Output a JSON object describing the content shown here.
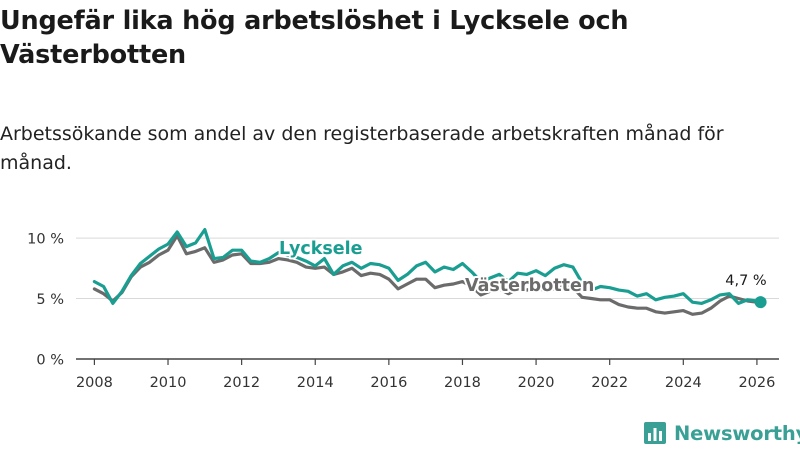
{
  "title": "Ungefär lika hög arbetslöshet i Lycksele och Västerbotten",
  "subtitle": "Arbetssökande som andel av den registerbaserade arbetskraften månad för månad.",
  "brand": {
    "name": "Newsworthy",
    "icon": "newsworthy-logo-icon",
    "color": "#3aa095"
  },
  "chart_data": {
    "type": "line",
    "title": "Ungefär lika hög arbetslöshet i Lycksele och Västerbotten",
    "xlabel": "",
    "ylabel": "",
    "xlim": [
      2007.5,
      2026.6
    ],
    "ylim": [
      0,
      11
    ],
    "grid": true,
    "y_ticks": [
      0,
      5,
      10
    ],
    "y_tick_labels": [
      "0 %",
      "5 %",
      "10 %"
    ],
    "x_ticks": [
      2008,
      2010,
      2012,
      2014,
      2016,
      2018,
      2020,
      2022,
      2024,
      2026
    ],
    "x_tick_labels": [
      "2008",
      "2010",
      "2012",
      "2014",
      "2016",
      "2018",
      "2020",
      "2022",
      "2024",
      "2026"
    ],
    "end_label": "4,7 %",
    "series": [
      {
        "name": "Lycksele",
        "label": "Lycksele",
        "color": "#1a9e92",
        "x": [
          2008.0,
          2008.25,
          2008.5,
          2008.75,
          2009.0,
          2009.25,
          2009.5,
          2009.75,
          2010.0,
          2010.25,
          2010.5,
          2010.75,
          2011.0,
          2011.25,
          2011.5,
          2011.75,
          2012.0,
          2012.25,
          2012.5,
          2012.75,
          2013.0,
          2013.25,
          2013.5,
          2013.75,
          2014.0,
          2014.25,
          2014.5,
          2014.75,
          2015.0,
          2015.25,
          2015.5,
          2015.75,
          2016.0,
          2016.25,
          2016.5,
          2016.75,
          2017.0,
          2017.25,
          2017.5,
          2017.75,
          2018.0,
          2018.25,
          2018.5,
          2018.75,
          2019.0,
          2019.25,
          2019.5,
          2019.75,
          2020.0,
          2020.25,
          2020.5,
          2020.75,
          2021.0,
          2021.25,
          2021.5,
          2021.75,
          2022.0,
          2022.25,
          2022.5,
          2022.75,
          2023.0,
          2023.25,
          2023.5,
          2023.75,
          2024.0,
          2024.25,
          2024.5,
          2024.75,
          2025.0,
          2025.25,
          2025.5,
          2025.75,
          2026.0,
          2026.1
        ],
        "values": [
          6.4,
          6.0,
          4.6,
          5.6,
          6.9,
          7.9,
          8.5,
          9.1,
          9.5,
          10.5,
          9.3,
          9.6,
          10.7,
          8.3,
          8.4,
          9.0,
          9.0,
          8.1,
          8.0,
          8.3,
          8.8,
          8.6,
          8.4,
          8.1,
          7.7,
          8.3,
          7.0,
          7.7,
          8.0,
          7.5,
          7.9,
          7.8,
          7.5,
          6.5,
          7.0,
          7.7,
          8.0,
          7.2,
          7.6,
          7.4,
          7.9,
          7.2,
          6.4,
          6.7,
          7.0,
          6.4,
          7.1,
          7.0,
          7.3,
          6.9,
          7.5,
          7.8,
          7.6,
          6.3,
          5.7,
          6.0,
          5.9,
          5.7,
          5.6,
          5.2,
          5.4,
          4.9,
          5.1,
          5.2,
          5.4,
          4.7,
          4.6,
          4.9,
          5.3,
          5.4,
          4.6,
          4.9,
          4.8,
          4.7
        ]
      },
      {
        "name": "Västerbotten",
        "label": "Västerbotten",
        "color": "#6b6b6b",
        "x": [
          2008.0,
          2008.25,
          2008.5,
          2008.75,
          2009.0,
          2009.25,
          2009.5,
          2009.75,
          2010.0,
          2010.25,
          2010.5,
          2010.75,
          2011.0,
          2011.25,
          2011.5,
          2011.75,
          2012.0,
          2012.25,
          2012.5,
          2012.75,
          2013.0,
          2013.25,
          2013.5,
          2013.75,
          2014.0,
          2014.25,
          2014.5,
          2014.75,
          2015.0,
          2015.25,
          2015.5,
          2015.75,
          2016.0,
          2016.25,
          2016.5,
          2016.75,
          2017.0,
          2017.25,
          2017.5,
          2017.75,
          2018.0,
          2018.25,
          2018.5,
          2018.75,
          2019.0,
          2019.25,
          2019.5,
          2019.75,
          2020.0,
          2020.25,
          2020.5,
          2020.75,
          2021.0,
          2021.25,
          2021.5,
          2021.75,
          2022.0,
          2022.25,
          2022.5,
          2022.75,
          2023.0,
          2023.25,
          2023.5,
          2023.75,
          2024.0,
          2024.25,
          2024.5,
          2024.75,
          2025.0,
          2025.25,
          2025.5,
          2025.75,
          2026.0,
          2026.1
        ],
        "values": [
          5.8,
          5.4,
          4.8,
          5.5,
          6.8,
          7.6,
          8.0,
          8.6,
          9.0,
          10.2,
          8.7,
          8.9,
          9.2,
          8.0,
          8.2,
          8.6,
          8.7,
          7.9,
          7.9,
          8.0,
          8.3,
          8.2,
          8.0,
          7.6,
          7.5,
          7.6,
          7.0,
          7.2,
          7.5,
          6.9,
          7.1,
          7.0,
          6.6,
          5.8,
          6.2,
          6.6,
          6.6,
          5.9,
          6.1,
          6.2,
          6.4,
          6.0,
          5.3,
          5.6,
          5.8,
          5.4,
          5.8,
          5.7,
          6.0,
          5.6,
          5.8,
          6.0,
          5.9,
          5.1,
          5.0,
          4.9,
          4.9,
          4.5,
          4.3,
          4.2,
          4.2,
          3.9,
          3.8,
          3.9,
          4.0,
          3.7,
          3.8,
          4.2,
          4.8,
          5.2,
          5.0,
          4.8,
          4.7,
          4.7
        ]
      }
    ]
  }
}
